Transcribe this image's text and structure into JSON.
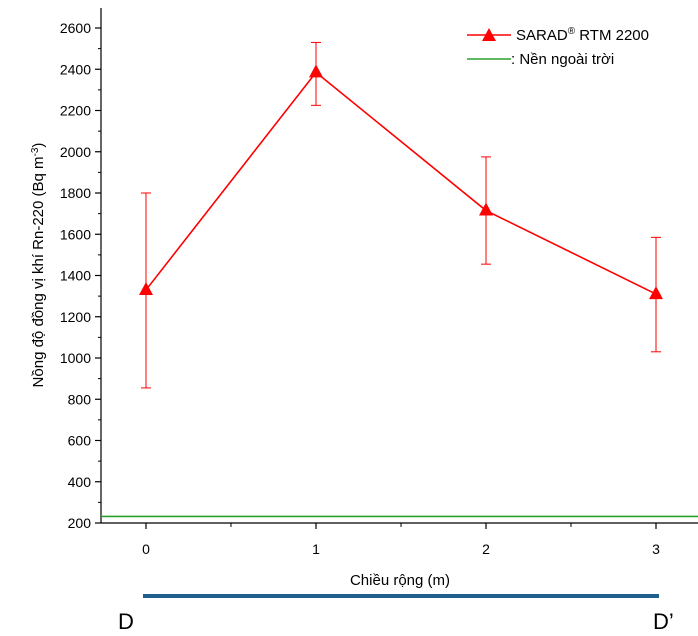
{
  "chart_data": {
    "type": "line",
    "xlabel": "Chiều rộng (m)",
    "ylabel": "Nồng độ đồng vị khí Rn-220 (Bq m",
    "ylabel_sup": "-3",
    "ylabel_close": ")",
    "x_ticks": [
      "0",
      "1",
      "2",
      "3"
    ],
    "y_ticks": [
      "200",
      "400",
      "600",
      "800",
      "1000",
      "1200",
      "1400",
      "1600",
      "1800",
      "2000",
      "2200",
      "2400",
      "2600"
    ],
    "xlim": [
      -0.25,
      3.25
    ],
    "ylim": [
      200,
      2700
    ],
    "grid": false,
    "legend_position": "top-right",
    "series": [
      {
        "name": "SARAD",
        "name_sup": "®",
        "name_rest": " RTM 2200",
        "color": "#ff0000",
        "marker": "triangle",
        "x": [
          0,
          1,
          2,
          3
        ],
        "y": [
          1330,
          2385,
          1715,
          1310
        ],
        "err_low": [
          855,
          2225,
          1455,
          1030
        ],
        "err_high": [
          1800,
          2530,
          1975,
          1585
        ]
      }
    ],
    "reference_line": {
      "name": ": Nền ngoài trời",
      "color": "#2ca02c",
      "y": 232
    },
    "scale_bar": {
      "color": "#1f5f8b",
      "start_label": "D",
      "end_label": "D’"
    }
  }
}
